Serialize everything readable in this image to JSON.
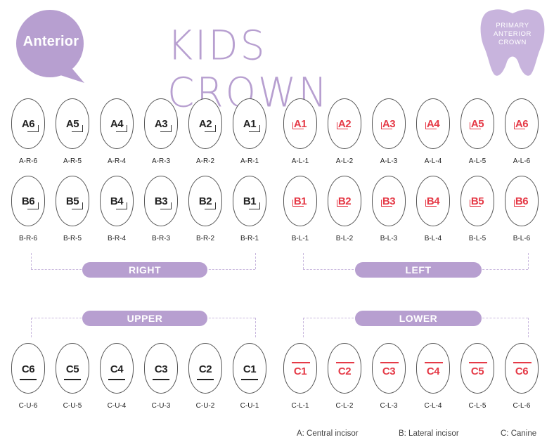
{
  "badge": {
    "label": "Anterior"
  },
  "title": "KIDS CROWN",
  "tooth_badge": {
    "line1": "PRIMARY",
    "line2": "ANTERIOR",
    "line3": "CROWN"
  },
  "colors": {
    "accent": "#b79fd0",
    "left_red": "#e53a47",
    "right_dark": "#222222",
    "dash": "#c9b8de"
  },
  "rows": {
    "a_right": {
      "labels": [
        "A6",
        "A5",
        "A4",
        "A3",
        "A2",
        "A1"
      ],
      "codes": [
        "A-R-6",
        "A-R-5",
        "A-R-4",
        "A-R-3",
        "A-R-2",
        "A-R-1"
      ]
    },
    "a_left": {
      "labels": [
        "A1",
        "A2",
        "A3",
        "A4",
        "A5",
        "A6"
      ],
      "codes": [
        "A-L-1",
        "A-L-2",
        "A-L-3",
        "A-L-4",
        "A-L-5",
        "A-L-6"
      ]
    },
    "b_right": {
      "labels": [
        "B6",
        "B5",
        "B4",
        "B3",
        "B2",
        "B1"
      ],
      "codes": [
        "B-R-6",
        "B-R-5",
        "B-R-4",
        "B-R-3",
        "B-R-2",
        "B-R-1"
      ]
    },
    "b_left": {
      "labels": [
        "B1",
        "B2",
        "B3",
        "B4",
        "B5",
        "B6"
      ],
      "codes": [
        "B-L-1",
        "B-L-2",
        "B-L-3",
        "B-L-4",
        "B-L-5",
        "B-L-6"
      ]
    },
    "c_upper": {
      "labels": [
        "C6",
        "C5",
        "C4",
        "C3",
        "C2",
        "C1"
      ],
      "codes": [
        "C-U-6",
        "C-U-5",
        "C-U-4",
        "C-U-3",
        "C-U-2",
        "C-U-1"
      ]
    },
    "c_lower": {
      "labels": [
        "C1",
        "C2",
        "C3",
        "C4",
        "C5",
        "C6"
      ],
      "codes": [
        "C-L-1",
        "C-L-2",
        "C-L-3",
        "C-L-4",
        "C-L-5",
        "C-L-6"
      ]
    }
  },
  "pills": {
    "right": "RIGHT",
    "left": "LEFT",
    "upper": "UPPER",
    "lower": "LOWER"
  },
  "legend": {
    "a": "A: Central incisor",
    "b": "B: Lateral incisor",
    "c": "C: Canine"
  }
}
